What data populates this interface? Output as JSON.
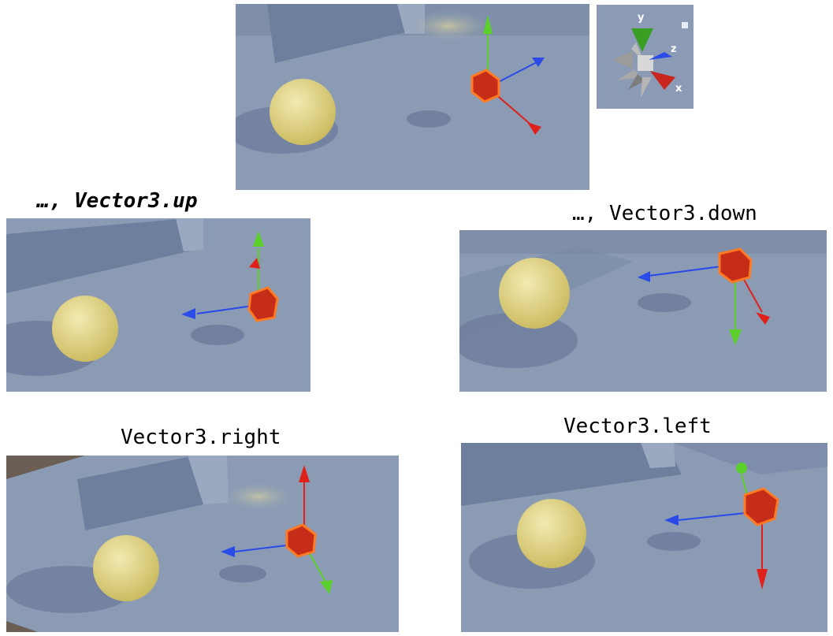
{
  "captions": {
    "up": "…, Vector3.up",
    "down": "…, Vector3.down",
    "right": "Vector3.right",
    "left": "Vector3.left"
  },
  "gizmo": {
    "y_label": "y",
    "z_label": "z",
    "x_label": "x"
  },
  "colors": {
    "background": "#8a9ab3",
    "x_axis": "#e0201a",
    "y_axis": "#5bd02a",
    "z_axis": "#2a4be8",
    "cube": "#c62d18",
    "sphere": "#e2d48a"
  }
}
